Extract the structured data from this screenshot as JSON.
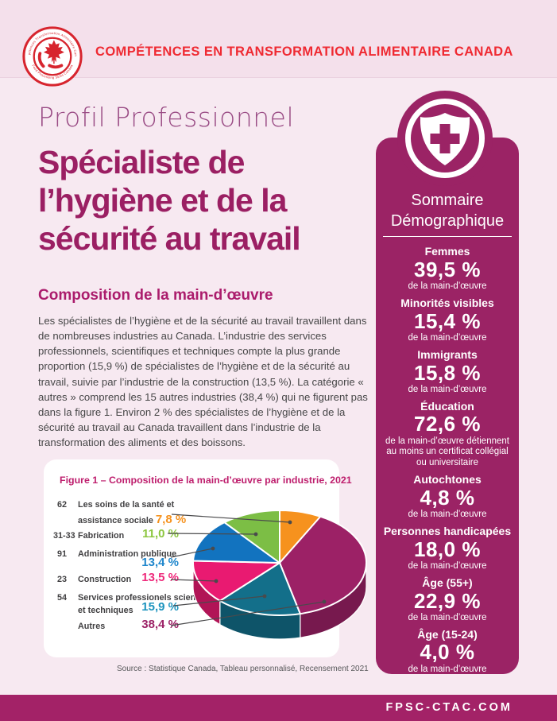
{
  "header": {
    "brand": "COMPÉTENCES EN TRANSFORMATION ALIMENTAIRE CANADA",
    "logo": {
      "ring_text_top": "Compétences Transformation Alimentaire Canada",
      "ring_text_bottom": "Food Processing Skills Canada"
    }
  },
  "main": {
    "eyebrow": "Profil Professionnel",
    "title": "Spécialiste de\nl’hygiène et de la\nsécurité au travail",
    "section_title": "Composition de la main-d’œuvre",
    "body": "Les spécialistes de l’hygiène et de la sécurité au travail travaillent dans de nombreuses industries au Canada. L’industrie des services professionnels, scientifiques et techniques compte la plus grande proportion (15,9 %) de spécialistes de l’hygiène et de la sécurité au travail, suivie par l’industrie de la construction (13,5 %). La catégorie « autres » comprend les 15 autres industries (38,4 %) qui ne figurent pas dans la figure 1. Environ 2 % des spécialistes de l’hygiène et de la sécurité au travail au Canada travaillent dans l’industrie de la transformation des aliments et des boissons.",
    "source": "Source : Statistique Canada, Tableau personnalisé, Recensement 2021"
  },
  "chart_data": {
    "type": "pie",
    "title": "Figure 1 – Composition de la main-d’œuvre par industrie, 2021",
    "unit": "%",
    "legend_position": "left",
    "style": "3d-pie",
    "slices": [
      {
        "code": "62",
        "label": "Les soins de la santé et",
        "label2": "assistance sociale",
        "pct": "7,8 %",
        "value": 7.8,
        "color": "#F6921E",
        "text_color": "#F6921E"
      },
      {
        "code": "31-33",
        "label": "Fabrication",
        "label2": "",
        "pct": "11,0 %",
        "value": 11.0,
        "color": "#7CBE45",
        "text_color": "#8CC63F"
      },
      {
        "code": "91",
        "label": "Administration publique",
        "label2": "",
        "pct": "13,4 %",
        "value": 13.4,
        "color": "#1273BF",
        "text_color": "#1E86CC"
      },
      {
        "code": "23",
        "label": "Construction",
        "label2": "",
        "pct": "13,5 %",
        "value": 13.5,
        "color": "#E91A71",
        "text_color": "#EE2A7B"
      },
      {
        "code": "54",
        "label": "Services professionels scientifiques",
        "label2": "et techniques",
        "pct": "15,9 %",
        "value": 15.9,
        "color": "#136F8A",
        "text_color": "#1D94BE"
      },
      {
        "code": "",
        "label": "Autres",
        "label2": "",
        "pct": "38,4 %",
        "value": 38.4,
        "color": "#9C2166",
        "text_color": "#9C2166"
      }
    ],
    "draw_order": [
      0,
      5,
      4,
      3,
      2,
      1
    ],
    "start_angle_deg": -90,
    "direction": "clockwise"
  },
  "sidebar": {
    "title": "Sommaire\nDémographique",
    "stats": [
      {
        "label": "Femmes",
        "value": "39,5 %",
        "caption": "de la main-d’œuvre"
      },
      {
        "label": "Minorités visibles",
        "value": "15,4 %",
        "caption": "de la main-d’œuvre"
      },
      {
        "label": "Immigrants",
        "value": "15,8 %",
        "caption": "de la main-d’œuvre"
      },
      {
        "label": "Éducation",
        "value": "72,6 %",
        "caption": "de la main-d’œuvre détiennent au moins un certificat collégial ou universitaire"
      },
      {
        "label": "Autochtones",
        "value": "4,8 %",
        "caption": "de la main-d’œuvre"
      },
      {
        "label": "Personnes handicapées",
        "value": "18,0 %",
        "caption": "de la main-d’œuvre"
      },
      {
        "label": "Âge (55+)",
        "value": "22,9 %",
        "caption": "de la main-d’œuvre"
      },
      {
        "label": "Âge (15-24)",
        "value": "4,0 %",
        "caption": "de la main-d’œuvre"
      }
    ]
  },
  "footer": {
    "url": "FPSC-CTAC.COM"
  },
  "colors": {
    "page_bg": "#F7E9F1",
    "header_band": "#F4E0EB",
    "brand_red": "#EF2A32",
    "title_magenta": "#9B1F63",
    "panel_magenta": "#9B2365",
    "footer_magenta": "#A32267",
    "figure_title": "#BE1E6D",
    "leader_line": "#4A4A4C"
  }
}
